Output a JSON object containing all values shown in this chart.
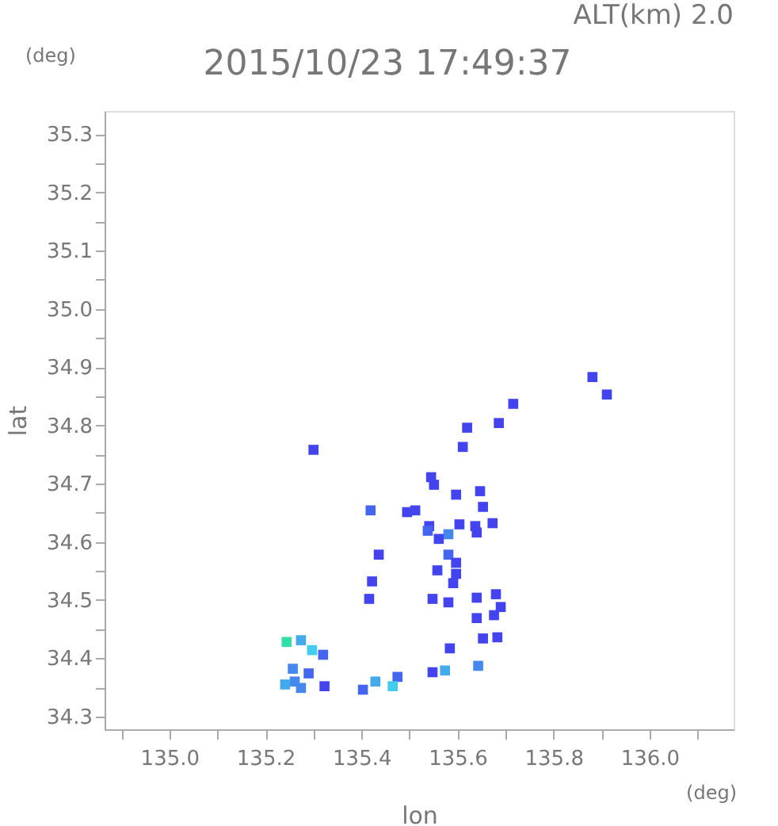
{
  "chart_data": {
    "type": "scatter",
    "title": "2015/10/23 17:49:37",
    "xlabel": "lon",
    "ylabel": "lat",
    "annotations": [
      "ALT(km) 2.0",
      "(deg)",
      "(deg)"
    ],
    "marker": "square",
    "grid": false,
    "xlim": [
      134.865,
      136.175
    ],
    "ylim": [
      34.278,
      35.34
    ],
    "xticks": [
      {
        "value": 134.9,
        "label": null
      },
      {
        "value": 135.0,
        "label": "135.0"
      },
      {
        "value": 135.1,
        "label": null
      },
      {
        "value": 135.2,
        "label": "135.2"
      },
      {
        "value": 135.3,
        "label": null
      },
      {
        "value": 135.4,
        "label": "135.4"
      },
      {
        "value": 135.5,
        "label": null
      },
      {
        "value": 135.6,
        "label": "135.6"
      },
      {
        "value": 135.7,
        "label": null
      },
      {
        "value": 135.8,
        "label": "135.8"
      },
      {
        "value": 135.9,
        "label": null
      },
      {
        "value": 136.0,
        "label": "136.0"
      },
      {
        "value": 136.1,
        "label": null
      }
    ],
    "yticks": [
      34.3,
      {
        "value": 34.35,
        "label": null
      },
      34.4,
      {
        "value": 34.45,
        "label": null
      },
      34.5,
      {
        "value": 34.55,
        "label": null
      },
      34.6,
      {
        "value": 34.65,
        "label": null
      },
      34.7,
      {
        "value": 34.75,
        "label": null
      },
      34.8,
      {
        "value": 34.85,
        "label": null
      },
      34.9,
      {
        "value": 34.95,
        "label": null
      },
      {
        "value": 35.0,
        "label": "35.0"
      },
      {
        "value": 35.05,
        "label": null
      },
      35.1,
      {
        "value": 35.15,
        "label": null
      },
      35.2,
      {
        "value": 35.25,
        "label": null
      },
      35.3
    ],
    "x": [
      135.881,
      135.911,
      135.716,
      135.686,
      135.62,
      135.611,
      135.3,
      135.545,
      135.551,
      135.597,
      135.647,
      135.653,
      135.419,
      135.495,
      135.541,
      135.604,
      135.637,
      135.673,
      135.581,
      135.64,
      135.538,
      135.561,
      135.512,
      135.581,
      135.558,
      135.597,
      135.597,
      135.436,
      135.422,
      135.591,
      135.548,
      135.416,
      135.581,
      135.64,
      135.68,
      135.69,
      135.676,
      135.683,
      135.653,
      135.64,
      135.584,
      135.643,
      135.574,
      135.548,
      135.475,
      135.429,
      135.465,
      135.244,
      135.274,
      135.297,
      135.32,
      135.257,
      135.261,
      135.241,
      135.274,
      135.29,
      135.323,
      135.403
    ],
    "values": [
      34.883,
      34.853,
      34.837,
      34.804,
      34.796,
      34.763,
      34.758,
      34.711,
      34.698,
      34.681,
      34.687,
      34.66,
      34.654,
      34.651,
      34.627,
      34.63,
      34.627,
      34.632,
      34.613,
      34.616,
      34.619,
      34.605,
      34.654,
      34.578,
      34.551,
      34.564,
      34.545,
      34.578,
      34.532,
      34.529,
      34.502,
      34.502,
      34.496,
      34.504,
      34.51,
      34.488,
      34.474,
      34.436,
      34.434,
      34.469,
      34.417,
      34.387,
      34.379,
      34.376,
      34.368,
      34.36,
      34.352,
      34.428,
      34.431,
      34.414,
      34.406,
      34.382,
      34.36,
      34.355,
      34.349,
      34.374,
      34.352,
      34.346
    ],
    "colors": [
      "#4444ee",
      "#4444ee",
      "#4444ee",
      "#4444ee",
      "#4444ee",
      "#4444ee",
      "#4444ee",
      "#4444ee",
      "#4444ee",
      "#4444ee",
      "#4444ee",
      "#4444ee",
      "#4466ee",
      "#4444ee",
      "#4444ee",
      "#4444ee",
      "#4444ee",
      "#4444ee",
      "#4488ee",
      "#4444ee",
      "#4466ee",
      "#4444ee",
      "#4444ee",
      "#4466ee",
      "#4444ee",
      "#4444ee",
      "#4444ee",
      "#4444ee",
      "#4444ee",
      "#4444ee",
      "#4444ee",
      "#4444ee",
      "#4444ee",
      "#4444ee",
      "#4444ee",
      "#4444ee",
      "#4444ee",
      "#4444ee",
      "#4444ee",
      "#4444ee",
      "#4444ee",
      "#4488ee",
      "#44aaee",
      "#4444ee",
      "#4466ee",
      "#44aaee",
      "#44ccee",
      "#33ddaa",
      "#44aaee",
      "#44ccee",
      "#4466ee",
      "#4488ee",
      "#4488ee",
      "#44aaee",
      "#4488ee",
      "#4466ee",
      "#4444ee",
      "#4466ee"
    ]
  }
}
